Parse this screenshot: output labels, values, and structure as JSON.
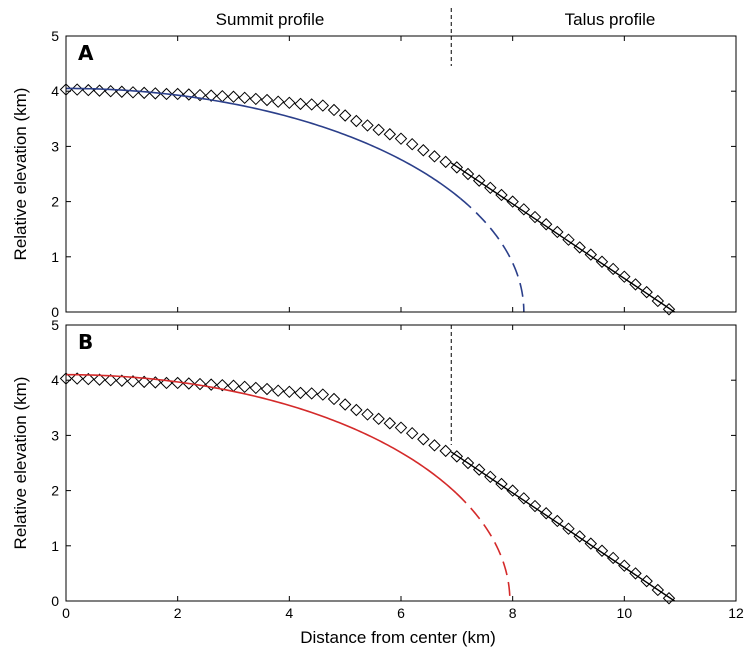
{
  "figure": {
    "top_labels": {
      "left": "Summit profile",
      "right": "Talus profile"
    },
    "xlabel": "Distance from center (km)",
    "divider_x": 6.9
  },
  "chart_data": [
    {
      "type": "line",
      "panel_label": "A",
      "ylabel": "Relative elevation (km)",
      "xlim": [
        0,
        12
      ],
      "ylim": [
        0,
        5
      ],
      "xticks": [
        "0",
        "2",
        "4",
        "6",
        "8",
        "10",
        "12"
      ],
      "yticks": [
        "0",
        "1",
        "2",
        "3",
        "4",
        "5"
      ],
      "series": [
        {
          "kind": "markers",
          "marker": "diamond",
          "color": "#000000",
          "x": [
            0,
            0.2,
            0.4,
            0.6,
            0.8,
            1.0,
            1.2,
            1.4,
            1.6,
            1.8,
            2.0,
            2.2,
            2.4,
            2.6,
            2.8,
            3.0,
            3.2,
            3.4,
            3.6,
            3.8,
            4.0,
            4.2,
            4.4,
            4.6,
            4.8,
            5.0,
            5.2,
            5.4,
            5.6,
            5.8,
            6.0,
            6.2,
            6.4,
            6.6,
            6.8,
            7.0,
            7.2,
            7.4,
            7.6,
            7.8,
            8.0,
            8.2,
            8.4,
            8.6,
            8.8,
            9.0,
            9.2,
            9.4,
            9.6,
            9.8,
            10.0,
            10.2,
            10.4,
            10.6,
            10.8
          ],
          "y": [
            4.03,
            4.03,
            4.02,
            4.01,
            4.0,
            3.99,
            3.98,
            3.97,
            3.96,
            3.95,
            3.95,
            3.94,
            3.93,
            3.92,
            3.91,
            3.9,
            3.88,
            3.86,
            3.84,
            3.81,
            3.79,
            3.77,
            3.76,
            3.74,
            3.66,
            3.56,
            3.46,
            3.38,
            3.3,
            3.22,
            3.14,
            3.04,
            2.93,
            2.82,
            2.72,
            2.62,
            2.5,
            2.38,
            2.25,
            2.12,
            2.0,
            1.86,
            1.72,
            1.59,
            1.45,
            1.31,
            1.17,
            1.04,
            0.91,
            0.78,
            0.64,
            0.5,
            0.36,
            0.2,
            0.05
          ]
        },
        {
          "kind": "line",
          "color": "#000000",
          "x": [
            6.9,
            10.9
          ],
          "y": [
            2.7,
            0.0
          ]
        },
        {
          "kind": "ellipse",
          "color": "#2b3f8a",
          "center": [
            0,
            0
          ],
          "a": 8.2,
          "b": 4.05,
          "y_solid_min": 2.05
        }
      ]
    },
    {
      "type": "line",
      "panel_label": "B",
      "ylabel": "Relative elevation (km)",
      "xlim": [
        0,
        12
      ],
      "ylim": [
        0,
        5
      ],
      "xticks": [
        "0",
        "2",
        "4",
        "6",
        "8",
        "10",
        "12"
      ],
      "yticks": [
        "0",
        "1",
        "2",
        "3",
        "4",
        "5"
      ],
      "series": [
        {
          "kind": "markers",
          "marker": "diamond",
          "color": "#000000",
          "x": [
            0,
            0.2,
            0.4,
            0.6,
            0.8,
            1.0,
            1.2,
            1.4,
            1.6,
            1.8,
            2.0,
            2.2,
            2.4,
            2.6,
            2.8,
            3.0,
            3.2,
            3.4,
            3.6,
            3.8,
            4.0,
            4.2,
            4.4,
            4.6,
            4.8,
            5.0,
            5.2,
            5.4,
            5.6,
            5.8,
            6.0,
            6.2,
            6.4,
            6.6,
            6.8,
            7.0,
            7.2,
            7.4,
            7.6,
            7.8,
            8.0,
            8.2,
            8.4,
            8.6,
            8.8,
            9.0,
            9.2,
            9.4,
            9.6,
            9.8,
            10.0,
            10.2,
            10.4,
            10.6,
            10.8
          ],
          "y": [
            4.03,
            4.03,
            4.02,
            4.01,
            4.0,
            3.99,
            3.98,
            3.97,
            3.96,
            3.95,
            3.95,
            3.94,
            3.93,
            3.92,
            3.91,
            3.9,
            3.88,
            3.86,
            3.84,
            3.81,
            3.79,
            3.77,
            3.76,
            3.74,
            3.66,
            3.56,
            3.46,
            3.38,
            3.3,
            3.22,
            3.14,
            3.04,
            2.93,
            2.82,
            2.72,
            2.62,
            2.5,
            2.38,
            2.25,
            2.12,
            2.0,
            1.86,
            1.72,
            1.59,
            1.45,
            1.31,
            1.17,
            1.04,
            0.91,
            0.78,
            0.64,
            0.5,
            0.36,
            0.2,
            0.05
          ]
        },
        {
          "kind": "line",
          "color": "#000000",
          "x": [
            6.9,
            10.9
          ],
          "y": [
            2.7,
            0.0
          ]
        },
        {
          "kind": "ellipse",
          "color": "#d42a2a",
          "center": [
            0,
            0
          ],
          "a": 7.95,
          "b": 4.1,
          "y_solid_min": 1.95
        }
      ]
    }
  ]
}
